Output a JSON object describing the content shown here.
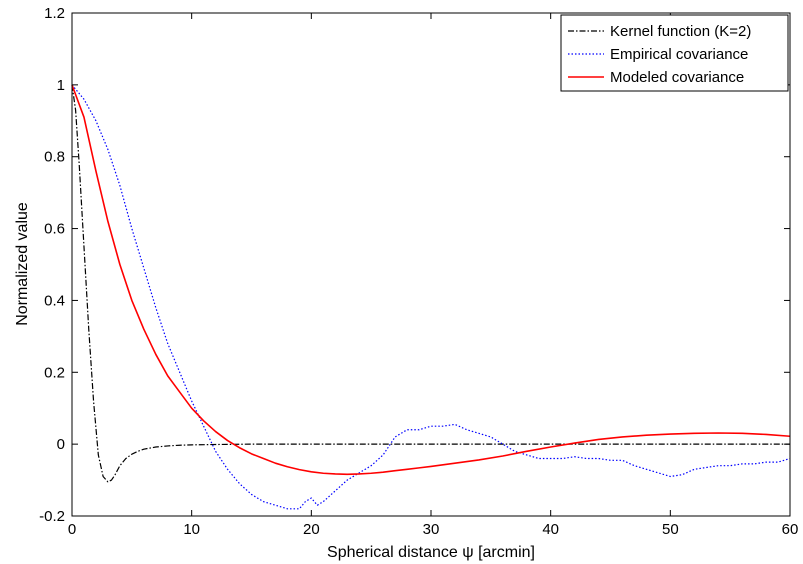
{
  "chart_data": {
    "type": "line",
    "title": "",
    "xlabel": "Spherical distance ψ [arcmin]",
    "ylabel": "Normalized value",
    "xlim": [
      0,
      60
    ],
    "ylim": [
      -0.2,
      1.2
    ],
    "xticks": [
      0,
      10,
      20,
      30,
      40,
      50,
      60
    ],
    "xtick_labels": [
      "0",
      "10",
      "20",
      "30",
      "40",
      "50",
      "60"
    ],
    "yticks": [
      -0.2,
      0,
      0.2,
      0.4,
      0.6,
      0.8,
      1,
      1.2
    ],
    "ytick_labels": [
      "-0.2",
      "0",
      "0.2",
      "0.4",
      "0.6",
      "0.8",
      "1",
      "1.2"
    ],
    "grid": false,
    "legend_position": "top-right",
    "series": [
      {
        "name": "Kernel function (K=2)",
        "color": "#000000",
        "style": "dash-dot",
        "x": [
          0,
          0.3,
          0.6,
          1.0,
          1.4,
          1.8,
          2.2,
          2.6,
          3.0,
          3.3,
          3.6,
          4.0,
          4.5,
          5.0,
          5.5,
          6.0,
          7.0,
          8.0,
          9.0,
          10.0,
          12.0,
          15.0,
          20.0,
          30.0,
          40.0,
          50.0,
          60.0
        ],
        "y": [
          1.0,
          0.93,
          0.78,
          0.55,
          0.32,
          0.12,
          -0.03,
          -0.09,
          -0.105,
          -0.1,
          -0.085,
          -0.06,
          -0.04,
          -0.028,
          -0.02,
          -0.014,
          -0.008,
          -0.005,
          -0.003,
          -0.002,
          -0.001,
          0.0,
          0.0,
          0.0,
          0.0,
          0.0,
          0.0
        ]
      },
      {
        "name": "Empirical covariance",
        "color": "#0000ff",
        "style": "dotted",
        "x": [
          0,
          1,
          2,
          3,
          4,
          5,
          6,
          7,
          8,
          9,
          10,
          11,
          12,
          13,
          14,
          15,
          16,
          17,
          18,
          19,
          19.5,
          20,
          20.5,
          21,
          22,
          23,
          24,
          25,
          26,
          27,
          28,
          29,
          30,
          31,
          32,
          33,
          34,
          35,
          36,
          37,
          38,
          39,
          40,
          41,
          42,
          43,
          44,
          45,
          46,
          47,
          48,
          49,
          50,
          51,
          52,
          53,
          54,
          55,
          56,
          57,
          58,
          59,
          60
        ],
        "y": [
          1.0,
          0.96,
          0.9,
          0.82,
          0.72,
          0.6,
          0.49,
          0.38,
          0.28,
          0.2,
          0.12,
          0.05,
          -0.02,
          -0.07,
          -0.11,
          -0.14,
          -0.16,
          -0.17,
          -0.18,
          -0.18,
          -0.16,
          -0.15,
          -0.17,
          -0.16,
          -0.13,
          -0.1,
          -0.08,
          -0.06,
          -0.03,
          0.02,
          0.04,
          0.04,
          0.05,
          0.05,
          0.055,
          0.04,
          0.03,
          0.02,
          0.0,
          -0.02,
          -0.03,
          -0.04,
          -0.04,
          -0.04,
          -0.035,
          -0.04,
          -0.04,
          -0.045,
          -0.045,
          -0.06,
          -0.07,
          -0.08,
          -0.09,
          -0.085,
          -0.07,
          -0.065,
          -0.06,
          -0.06,
          -0.055,
          -0.055,
          -0.05,
          -0.05,
          -0.04
        ]
      },
      {
        "name": "Modeled covariance",
        "color": "#ff0000",
        "style": "solid",
        "x": [
          0,
          1,
          2,
          3,
          4,
          5,
          6,
          7,
          8,
          9,
          10,
          11,
          12,
          13,
          14,
          15,
          16,
          17,
          18,
          19,
          20,
          21,
          22,
          23,
          24,
          25,
          26,
          27,
          28,
          29,
          30,
          32,
          34,
          36,
          38,
          40,
          42,
          44,
          46,
          48,
          50,
          52,
          54,
          56,
          58,
          60
        ],
        "y": [
          1.0,
          0.91,
          0.76,
          0.62,
          0.5,
          0.4,
          0.32,
          0.25,
          0.19,
          0.145,
          0.1,
          0.065,
          0.035,
          0.01,
          -0.01,
          -0.027,
          -0.04,
          -0.053,
          -0.063,
          -0.071,
          -0.077,
          -0.081,
          -0.083,
          -0.084,
          -0.083,
          -0.081,
          -0.078,
          -0.074,
          -0.07,
          -0.066,
          -0.062,
          -0.053,
          -0.044,
          -0.033,
          -0.02,
          -0.008,
          0.003,
          0.013,
          0.02,
          0.025,
          0.028,
          0.03,
          0.031,
          0.03,
          0.027,
          0.022
        ]
      }
    ]
  }
}
